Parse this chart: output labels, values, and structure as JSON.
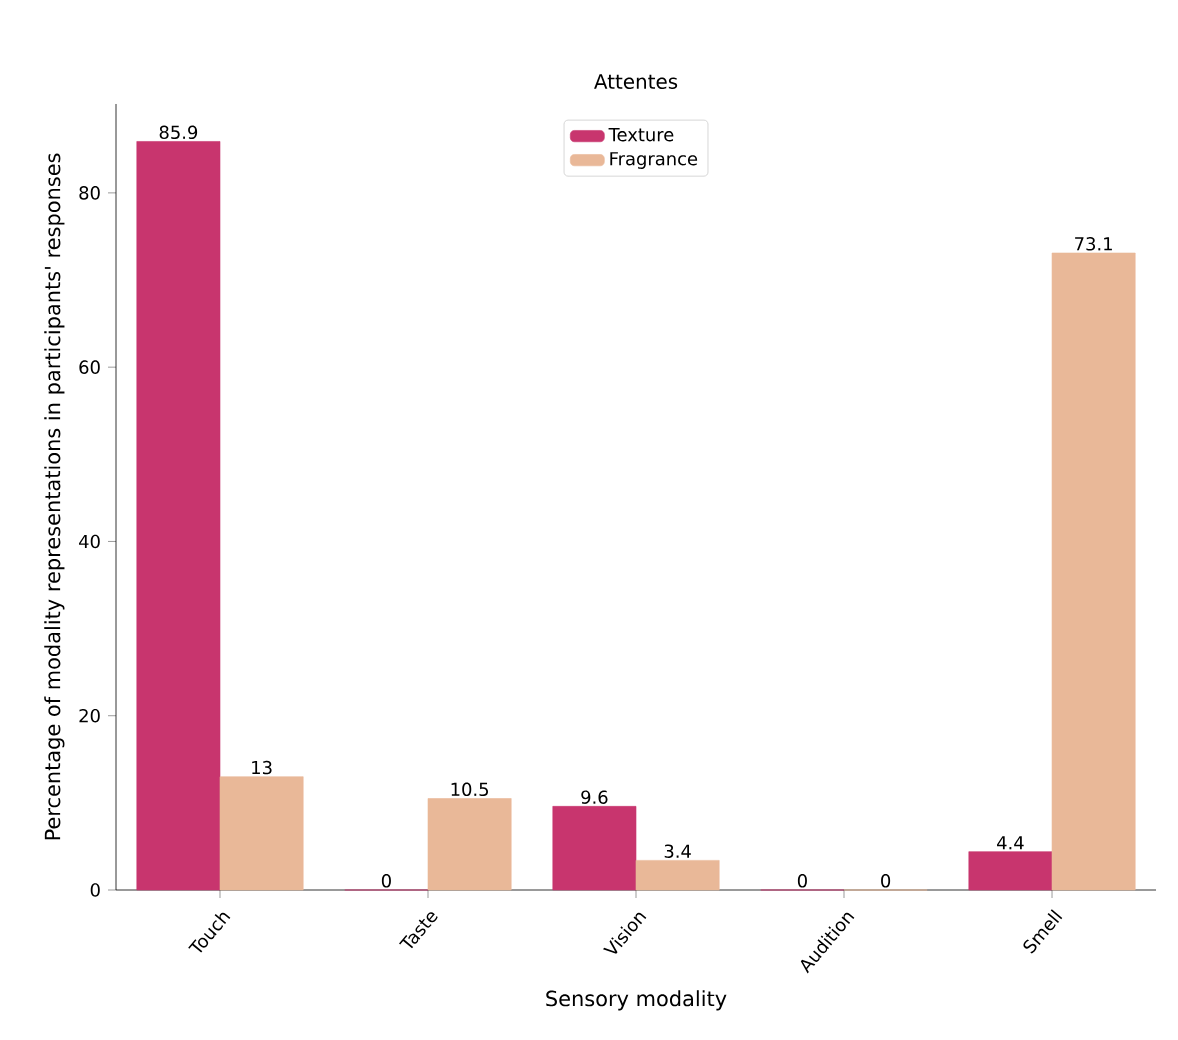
{
  "chart_data": {
    "type": "bar",
    "title": "Attentes",
    "xlabel": "Sensory modality",
    "ylabel": "Percentage of modality representations in participants' responses",
    "categories": [
      "Touch",
      "Taste",
      "Vision",
      "Audition",
      "Smell"
    ],
    "series": [
      {
        "name": "Texture",
        "color": "#c8356e",
        "values": [
          85.9,
          0,
          9.6,
          0,
          4.4
        ]
      },
      {
        "name": "Fragrance",
        "color": "#e9b898",
        "values": [
          13,
          10.5,
          3.4,
          0,
          73.1
        ]
      }
    ],
    "ylim": [
      0,
      90.2
    ],
    "yticks": [
      0,
      20,
      40,
      60,
      80
    ],
    "data_labels": true,
    "legend": "top",
    "grid": false
  }
}
